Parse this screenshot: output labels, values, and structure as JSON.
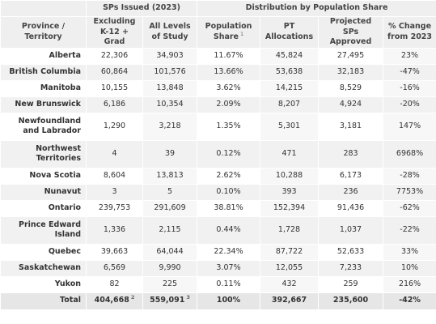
{
  "header": {
    "group_sps_issued": "SPs Issued (2023)",
    "group_distribution": "Distribution by Population Share",
    "columns": {
      "province": "Province / Territory",
      "excluding": "Excluding K-12 + Grad",
      "all_levels": "All Levels of Study",
      "population_share": "Population Share",
      "population_share_note": "1",
      "pt_allocations": "PT Allocations",
      "projected": "Projected SPs Approved",
      "change": "% Change from 2023"
    }
  },
  "rows": [
    {
      "province": "Alberta",
      "excluding": "22,306",
      "all_levels": "34,903",
      "population_share": "11.67%",
      "pt_allocations": "45,824",
      "projected": "27,495",
      "change": "23%"
    },
    {
      "province": "British Columbia",
      "excluding": "60,864",
      "all_levels": "101,576",
      "population_share": "13.66%",
      "pt_allocations": "53,638",
      "projected": "32,183",
      "change": "-47%"
    },
    {
      "province": "Manitoba",
      "excluding": "10,155",
      "all_levels": "13,848",
      "population_share": "3.62%",
      "pt_allocations": "14,215",
      "projected": "8,529",
      "change": "-16%"
    },
    {
      "province": "New Brunswick",
      "excluding": "6,186",
      "all_levels": "10,354",
      "population_share": "2.09%",
      "pt_allocations": "8,207",
      "projected": "4,924",
      "change": "-20%"
    },
    {
      "province": "Newfoundland and Labrador",
      "excluding": "1,290",
      "all_levels": "3,218",
      "population_share": "1.35%",
      "pt_allocations": "5,301",
      "projected": "3,181",
      "change": "147%"
    },
    {
      "province": "Northwest Territories",
      "excluding": "4",
      "all_levels": "39",
      "population_share": "0.12%",
      "pt_allocations": "471",
      "projected": "283",
      "change": "6968%"
    },
    {
      "province": "Nova Scotia",
      "excluding": "8,604",
      "all_levels": "13,813",
      "population_share": "2.62%",
      "pt_allocations": "10,288",
      "projected": "6,173",
      "change": "-28%"
    },
    {
      "province": "Nunavut",
      "excluding": "3",
      "all_levels": "5",
      "population_share": "0.10%",
      "pt_allocations": "393",
      "projected": "236",
      "change": "7753%"
    },
    {
      "province": "Ontario",
      "excluding": "239,753",
      "all_levels": "291,609",
      "population_share": "38.81%",
      "pt_allocations": "152,394",
      "projected": "91,436",
      "change": "-62%"
    },
    {
      "province": "Prince Edward Island",
      "excluding": "1,336",
      "all_levels": "2,115",
      "population_share": "0.44%",
      "pt_allocations": "1,728",
      "projected": "1,037",
      "change": "-22%"
    },
    {
      "province": "Quebec",
      "excluding": "39,663",
      "all_levels": "64,044",
      "population_share": "22.34%",
      "pt_allocations": "87,722",
      "projected": "52,633",
      "change": "33%"
    },
    {
      "province": "Saskatchewan",
      "excluding": "6,569",
      "all_levels": "9,990",
      "population_share": "3.07%",
      "pt_allocations": "12,055",
      "projected": "7,233",
      "change": "10%"
    },
    {
      "province": "Yukon",
      "excluding": "82",
      "all_levels": "225",
      "population_share": "0.11%",
      "pt_allocations": "432",
      "projected": "259",
      "change": "216%"
    }
  ],
  "total": {
    "label": "Total",
    "excluding": "404,668",
    "excluding_note": "2",
    "all_levels": "559,091",
    "all_levels_note": "3",
    "population_share": "100%",
    "pt_allocations": "392,667",
    "projected": "235,600",
    "change": "-42%"
  }
}
